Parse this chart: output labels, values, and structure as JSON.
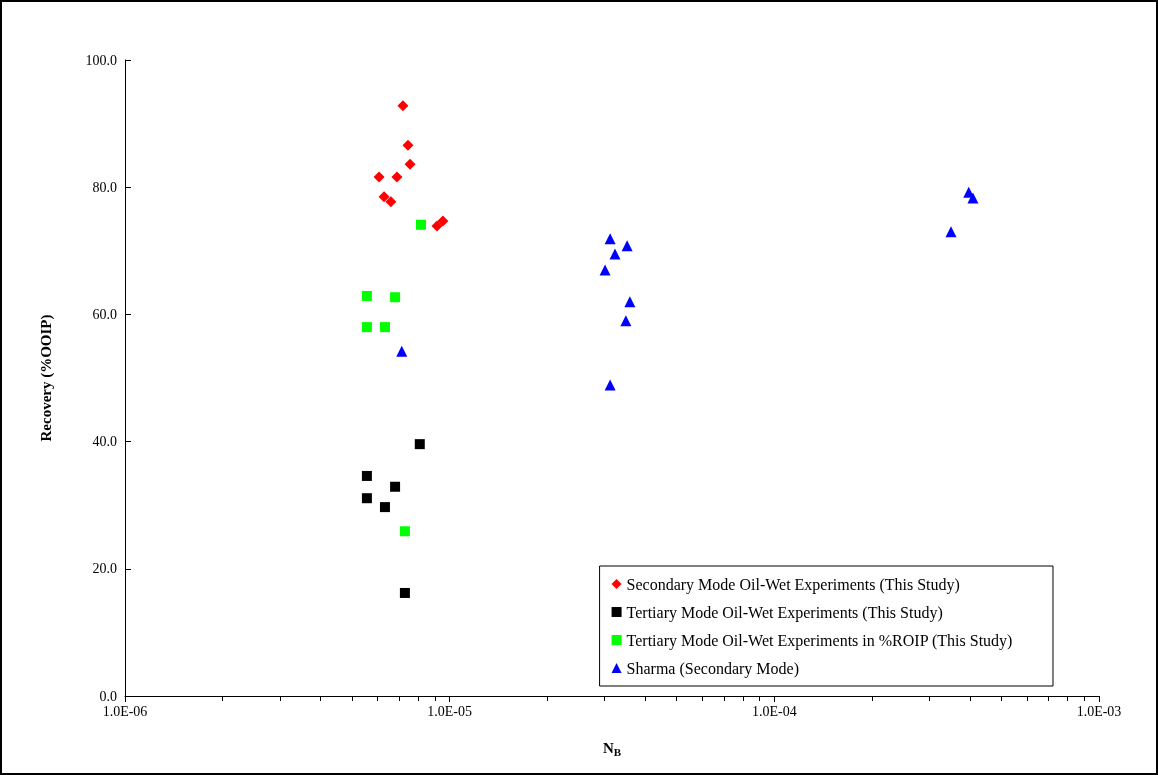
{
  "chart_data": {
    "type": "scatter",
    "xlabel": "N$_{B}$",
    "ylabel": "Recovery (%OOIP)",
    "log": "x",
    "xlim": [
      1e-06,
      0.001
    ],
    "xticks": [
      {
        "value": 1e-06,
        "label": "1.0E-06"
      },
      {
        "value": 1e-05,
        "label": "1.0E-05"
      },
      {
        "value": 0.0001,
        "label": "1.0E-04"
      },
      {
        "value": 0.001,
        "label": "1.0E-03"
      }
    ],
    "ylim": [
      0,
      100
    ],
    "yticks": [
      {
        "value": 0,
        "label": "0.0"
      },
      {
        "value": 20,
        "label": "20.0"
      },
      {
        "value": 40,
        "label": "40.0"
      },
      {
        "value": 60,
        "label": "60.0"
      },
      {
        "value": 80,
        "label": "80.0"
      },
      {
        "value": 100,
        "label": "100.0"
      }
    ],
    "grid": false,
    "legend": "bottom right",
    "series": [
      {
        "name": "Secondary Mode Oil-Wet Experiments (This Study)",
        "color": "#ff0000",
        "marker": "diamond",
        "x": [
          7.18e-06,
          7.44e-06,
          7.55e-06,
          6.06e-06,
          6.88e-06,
          6.28e-06,
          6.59e-06,
          9.14e-06,
          9.53e-06
        ],
        "values": [
          92.8,
          86.6,
          83.6,
          81.6,
          81.6,
          78.5,
          77.7,
          73.9,
          74.7
        ]
      },
      {
        "name": "Tertiary Mode Oil-Wet Experiments (This Study)",
        "color": "#000000",
        "marker": "square",
        "x": [
          5.56e-06,
          8.09e-06,
          5.56e-06,
          6.79e-06,
          6.32e-06,
          7.28e-06
        ],
        "values": [
          34.6,
          39.6,
          31.1,
          32.9,
          29.7,
          16.2
        ]
      },
      {
        "name": "Tertiary Mode Oil-Wet Experiments in %ROIP (This Study)",
        "color": "#00ff00",
        "marker": "square",
        "x": [
          8.16e-06,
          5.56e-06,
          6.79e-06,
          5.56e-06,
          6.32e-06,
          7.28e-06
        ],
        "values": [
          74.1,
          62.9,
          62.7,
          58.0,
          58.0,
          25.9
        ]
      },
      {
        "name": "Sharma (Secondary Mode)",
        "color": "#0000ff",
        "marker": "triangle",
        "x": [
          7.12e-06,
          3.12e-05,
          3.52e-05,
          3.23e-05,
          3.01e-05,
          3.59e-05,
          3.49e-05,
          3.12e-05,
          0.00035,
          0.000397,
          0.000409
        ],
        "values": [
          54.2,
          71.9,
          70.8,
          69.5,
          67.0,
          62.0,
          59.0,
          48.9,
          73.0,
          79.2,
          78.3
        ]
      }
    ]
  }
}
